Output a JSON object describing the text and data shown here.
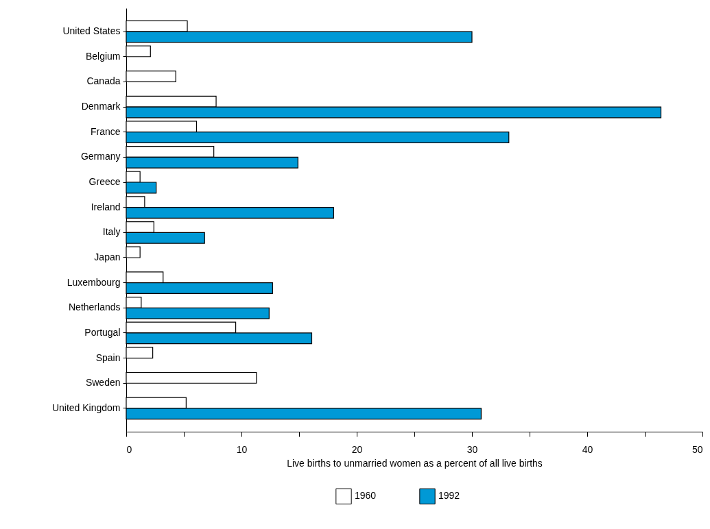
{
  "chart_data": {
    "type": "bar",
    "orientation": "horizontal",
    "xlabel": "Live births to unmarried women as a percent of all live births",
    "categories": [
      "United States",
      "Belgium",
      "Canada",
      "Denmark",
      "France",
      "Germany",
      "Greece",
      "Ireland",
      "Italy",
      "Japan",
      "Luxembourg",
      "Netherlands",
      "Portugal",
      "Spain",
      "Sweden",
      "United Kingdom"
    ],
    "series": [
      {
        "name": "1960",
        "color": "#ffffff",
        "values": [
          5.3,
          2.1,
          4.3,
          7.8,
          6.1,
          7.6,
          1.2,
          1.6,
          2.4,
          1.2,
          3.2,
          1.3,
          9.5,
          2.3,
          11.3,
          5.2
        ]
      },
      {
        "name": "1992",
        "color": "#0099d6",
        "values": [
          30.0,
          null,
          null,
          46.4,
          33.2,
          14.9,
          2.6,
          18.0,
          6.8,
          null,
          12.7,
          12.4,
          16.1,
          null,
          null,
          30.8
        ]
      }
    ],
    "xlim": [
      0,
      50
    ],
    "xticks": [
      0,
      {
        "value": 5,
        "label": null
      },
      10,
      {
        "value": 15,
        "label": null
      },
      20,
      {
        "value": 25,
        "label": null
      },
      30,
      {
        "value": 35,
        "label": null
      },
      40,
      {
        "value": 45,
        "label": null
      },
      50
    ],
    "grid": false,
    "legend": "bottom"
  }
}
